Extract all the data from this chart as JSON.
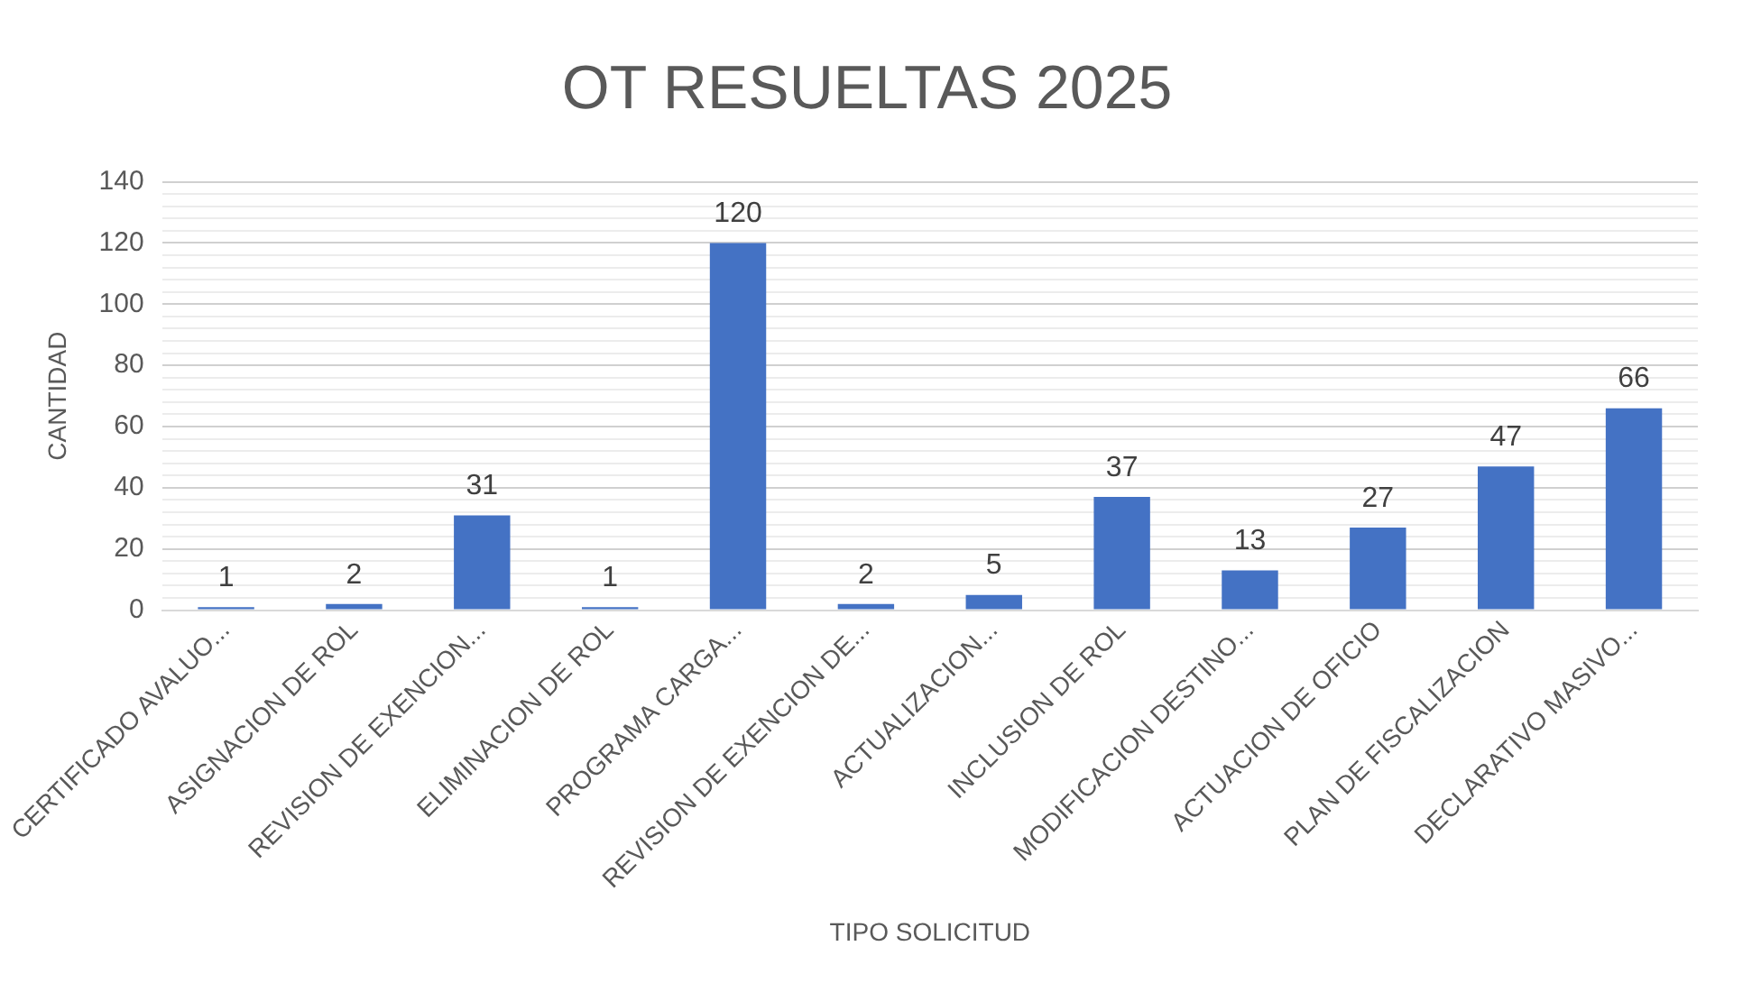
{
  "chart_data": {
    "type": "bar",
    "title": "OT RESUELTAS 2025",
    "xlabel": "TIPO SOLICITUD",
    "ylabel": "CANTIDAD",
    "categories": [
      "CERTIFICADO AVALUO...",
      "ASIGNACION DE ROL",
      "REVISION DE EXENCION...",
      "ELIMINACION DE ROL",
      "PROGRAMA CARGA...",
      "REVISION DE EXENCION DE...",
      "ACTUALIZACION...",
      "INCLUSION DE ROL",
      "MODIFICACION DESTINO...",
      "ACTUACION DE OFICIO",
      "PLAN DE FISCALIZACION",
      "DECLARATIVO MASIVO..."
    ],
    "values": [
      1,
      2,
      31,
      1,
      120,
      2,
      5,
      37,
      13,
      27,
      47,
      66
    ],
    "color": "#4472c4",
    "ylim": [
      0,
      140
    ],
    "yticks": [
      0,
      {
        "value": 4,
        "label": null
      },
      {
        "value": 8,
        "label": null
      },
      {
        "value": 12,
        "label": null
      },
      {
        "value": 16,
        "label": null
      },
      20,
      {
        "value": 24,
        "label": null
      },
      {
        "value": 28,
        "label": null
      },
      {
        "value": 32,
        "label": null
      },
      {
        "value": 36,
        "label": null
      },
      40,
      {
        "value": 44,
        "label": null
      },
      {
        "value": 48,
        "label": null
      },
      {
        "value": 52,
        "label": null
      },
      {
        "value": 56,
        "label": null
      },
      60,
      {
        "value": 64,
        "label": null
      },
      {
        "value": 68,
        "label": null
      },
      {
        "value": 72,
        "label": null
      },
      {
        "value": 76,
        "label": null
      },
      80,
      {
        "value": 84,
        "label": null
      },
      {
        "value": 88,
        "label": null
      },
      {
        "value": 92,
        "label": null
      },
      {
        "value": 96,
        "label": null
      },
      100,
      {
        "value": 104,
        "label": null
      },
      {
        "value": 108,
        "label": null
      },
      {
        "value": 112,
        "label": null
      },
      {
        "value": 116,
        "label": null
      },
      120,
      {
        "value": 124,
        "label": null
      },
      {
        "value": 128,
        "label": null
      },
      {
        "value": 132,
        "label": null
      },
      {
        "value": 136,
        "label": null
      },
      140
    ],
    "grid": "y",
    "legend": false,
    "data_labels": true
  }
}
